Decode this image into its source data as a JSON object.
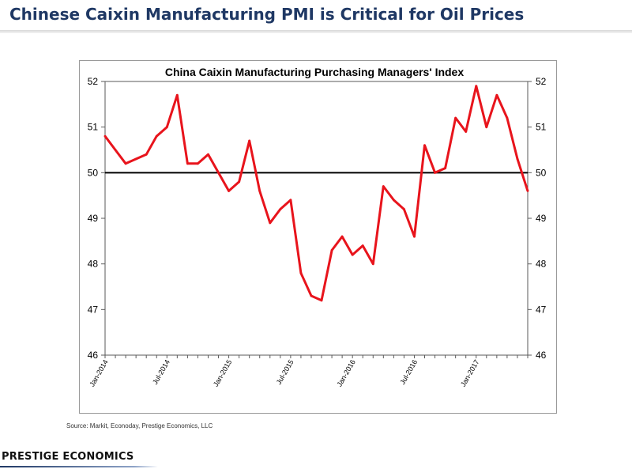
{
  "slide": {
    "title": "Chinese Caixin Manufacturing PMI is Critical for Oil Prices",
    "source": "Source: Markit, Econoday, Prestige Economics, LLC",
    "brand": "PRESTIGE ECONOMICS"
  },
  "colors": {
    "title": "#1f3864",
    "series": "#e8141c",
    "reference_line": "#000000",
    "brand_rule": "#1f3864"
  },
  "chart_data": {
    "type": "line",
    "title": "China Caixin Manufacturing Purchasing Managers' Index",
    "xlabel": "",
    "ylabel": "",
    "ylim": [
      46,
      52
    ],
    "yticks": [
      46,
      47,
      48,
      49,
      50,
      51,
      52
    ],
    "secondary_y_axis": true,
    "grid": false,
    "legend": "none",
    "reference_line": 50,
    "x_tick_labels": [
      "Jan-2014",
      "Jul-2014",
      "Jan-2015",
      "Jul-2015",
      "Jan-2016",
      "Jul-2016",
      "Jan-2017"
    ],
    "x_tick_months": [
      "2014-01",
      "2014-07",
      "2015-01",
      "2015-07",
      "2016-01",
      "2016-07",
      "2017-01"
    ],
    "x": [
      "2014-01",
      "2014-02",
      "2014-03",
      "2014-04",
      "2014-05",
      "2014-06",
      "2014-07",
      "2014-08",
      "2014-09",
      "2014-10",
      "2014-11",
      "2014-12",
      "2015-01",
      "2015-02",
      "2015-03",
      "2015-04",
      "2015-05",
      "2015-06",
      "2015-07",
      "2015-08",
      "2015-09",
      "2015-10",
      "2015-11",
      "2015-12",
      "2016-01",
      "2016-02",
      "2016-03",
      "2016-04",
      "2016-05",
      "2016-06",
      "2016-07",
      "2016-08",
      "2016-09",
      "2016-10",
      "2016-11",
      "2016-12",
      "2017-01",
      "2017-02",
      "2017-03",
      "2017-04",
      "2017-05",
      "2017-06"
    ],
    "series": [
      {
        "values": [
          50.8,
          50.5,
          50.2,
          50.3,
          50.4,
          50.8,
          51.0,
          51.7,
          50.2,
          50.2,
          50.4,
          50.0,
          49.6,
          49.8,
          50.7,
          49.6,
          48.9,
          49.2,
          49.4,
          47.8,
          47.3,
          47.2,
          48.3,
          48.6,
          48.2,
          48.4,
          48.0,
          49.7,
          49.4,
          49.2,
          48.6,
          50.6,
          50.0,
          50.1,
          51.2,
          50.9,
          51.9,
          51.0,
          51.7,
          51.2,
          50.3,
          49.6
        ]
      }
    ]
  }
}
